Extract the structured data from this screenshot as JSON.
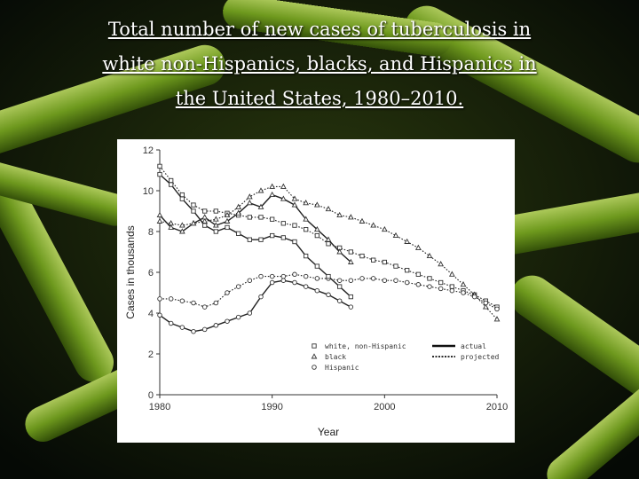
{
  "slide": {
    "title_line1": "Total number of new cases of tuberculosis in",
    "title_line2": "white non-Hispanics, blacks, and Hispanics in",
    "title_line3": "the United States, 1980–2010."
  },
  "chart_data": {
    "type": "line",
    "title": "",
    "xlabel": "Year",
    "ylabel": "Cases in thousands",
    "xlim": [
      1980,
      2010
    ],
    "ylim": [
      0,
      12
    ],
    "xticks": [
      1980,
      1990,
      2000,
      2010
    ],
    "yticks": [
      0,
      2,
      4,
      6,
      8,
      10,
      12
    ],
    "grid": false,
    "legend_position": "bottom-right",
    "legend_markers": [
      {
        "marker": "square",
        "label": "white, non-Hispanic"
      },
      {
        "marker": "triangle",
        "label": "black"
      },
      {
        "marker": "circle",
        "label": "Hispanic"
      }
    ],
    "legend_lines": [
      {
        "style": "solid",
        "label": "actual"
      },
      {
        "style": "dotted",
        "label": "projected"
      }
    ],
    "series": [
      {
        "group": "white, non-Hispanic",
        "kind": "actual",
        "marker": "square",
        "style": "solid",
        "x": [
          1980,
          1981,
          1982,
          1983,
          1984,
          1985,
          1986,
          1987,
          1988,
          1989,
          1990,
          1991,
          1992,
          1993,
          1994,
          1995,
          1996,
          1997
        ],
        "y": [
          10.8,
          10.3,
          9.6,
          9.0,
          8.3,
          8.0,
          8.2,
          7.9,
          7.6,
          7.6,
          7.8,
          7.7,
          7.5,
          6.8,
          6.3,
          5.8,
          5.3,
          4.8
        ]
      },
      {
        "group": "white, non-Hispanic",
        "kind": "projected",
        "marker": "square",
        "style": "dotted",
        "x": [
          1980,
          1981,
          1982,
          1983,
          1984,
          1985,
          1986,
          1987,
          1988,
          1989,
          1990,
          1991,
          1992,
          1993,
          1994,
          1995,
          1996,
          1997,
          1998,
          1999,
          2000,
          2001,
          2002,
          2003,
          2004,
          2005,
          2006,
          2007,
          2008,
          2009,
          2010
        ],
        "y": [
          11.2,
          10.5,
          9.8,
          9.3,
          9.0,
          9.0,
          8.9,
          8.8,
          8.7,
          8.7,
          8.6,
          8.4,
          8.3,
          8.1,
          7.8,
          7.4,
          7.2,
          7.0,
          6.8,
          6.6,
          6.5,
          6.3,
          6.1,
          5.9,
          5.7,
          5.5,
          5.3,
          5.1,
          4.9,
          4.6,
          4.3
        ]
      },
      {
        "group": "black",
        "kind": "actual",
        "marker": "triangle",
        "style": "solid",
        "x": [
          1980,
          1981,
          1982,
          1983,
          1984,
          1985,
          1986,
          1987,
          1988,
          1989,
          1990,
          1991,
          1992,
          1993,
          1994,
          1995,
          1996,
          1997
        ],
        "y": [
          8.8,
          8.2,
          8.0,
          8.4,
          8.7,
          8.3,
          8.5,
          8.9,
          9.4,
          9.2,
          9.8,
          9.6,
          9.3,
          8.6,
          8.1,
          7.6,
          7.0,
          6.5
        ]
      },
      {
        "group": "black",
        "kind": "projected",
        "marker": "triangle",
        "style": "dotted",
        "x": [
          1980,
          1981,
          1982,
          1983,
          1984,
          1985,
          1986,
          1987,
          1988,
          1989,
          1990,
          1991,
          1992,
          1993,
          1994,
          1995,
          1996,
          1997,
          1998,
          1999,
          2000,
          2001,
          2002,
          2003,
          2004,
          2005,
          2006,
          2007,
          2008,
          2009,
          2010
        ],
        "y": [
          8.5,
          8.4,
          8.3,
          8.4,
          8.5,
          8.6,
          8.8,
          9.2,
          9.7,
          10.0,
          10.2,
          10.2,
          9.6,
          9.4,
          9.3,
          9.1,
          8.8,
          8.7,
          8.5,
          8.3,
          8.1,
          7.8,
          7.5,
          7.2,
          6.8,
          6.4,
          5.9,
          5.4,
          4.9,
          4.3,
          3.7
        ]
      },
      {
        "group": "Hispanic",
        "kind": "actual",
        "marker": "circle",
        "style": "solid",
        "x": [
          1980,
          1981,
          1982,
          1983,
          1984,
          1985,
          1986,
          1987,
          1988,
          1989,
          1990,
          1991,
          1992,
          1993,
          1994,
          1995,
          1996,
          1997
        ],
        "y": [
          3.9,
          3.5,
          3.3,
          3.1,
          3.2,
          3.4,
          3.6,
          3.8,
          4.0,
          4.8,
          5.5,
          5.6,
          5.5,
          5.3,
          5.1,
          4.9,
          4.6,
          4.3
        ]
      },
      {
        "group": "Hispanic",
        "kind": "projected",
        "marker": "circle",
        "style": "dotted",
        "x": [
          1980,
          1981,
          1982,
          1983,
          1984,
          1985,
          1986,
          1987,
          1988,
          1989,
          1990,
          1991,
          1992,
          1993,
          1994,
          1995,
          1996,
          1997,
          1998,
          1999,
          2000,
          2001,
          2002,
          2003,
          2004,
          2005,
          2006,
          2007,
          2008,
          2009,
          2010
        ],
        "y": [
          4.7,
          4.7,
          4.6,
          4.5,
          4.3,
          4.5,
          5.0,
          5.3,
          5.6,
          5.8,
          5.8,
          5.8,
          5.9,
          5.8,
          5.7,
          5.7,
          5.6,
          5.6,
          5.7,
          5.7,
          5.6,
          5.6,
          5.5,
          5.4,
          5.3,
          5.2,
          5.1,
          5.0,
          4.8,
          4.5,
          4.2
        ]
      }
    ]
  }
}
